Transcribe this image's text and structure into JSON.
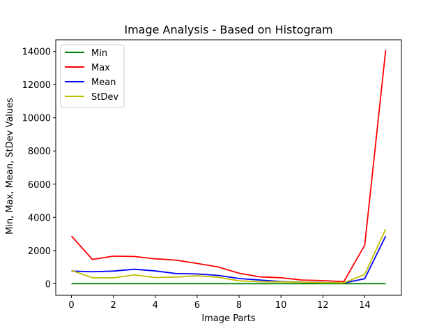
{
  "chart_data": {
    "type": "line",
    "title": "Image Analysis - Based on Histogram",
    "xlabel": "Image Parts",
    "ylabel": "Min, Max, Mean, StDev Values",
    "x": [
      0,
      1,
      2,
      3,
      4,
      5,
      6,
      7,
      8,
      9,
      10,
      11,
      12,
      13,
      14,
      15
    ],
    "xlim": [
      -0.75,
      15.75
    ],
    "ylim": [
      -700,
      14700
    ],
    "xticks": [
      0,
      2,
      4,
      6,
      8,
      10,
      12,
      14
    ],
    "yticks": [
      0,
      2000,
      4000,
      6000,
      8000,
      10000,
      12000,
      14000
    ],
    "grid": false,
    "legend_position": "top-left",
    "series": [
      {
        "name": "Min",
        "color": "#008000",
        "values": [
          0,
          0,
          0,
          0,
          0,
          0,
          0,
          0,
          0,
          0,
          0,
          0,
          0,
          0,
          0,
          0
        ]
      },
      {
        "name": "Max",
        "color": "#ff0000",
        "values": [
          2870,
          1460,
          1660,
          1640,
          1500,
          1420,
          1220,
          1010,
          630,
          410,
          360,
          220,
          190,
          120,
          2320,
          14080
        ]
      },
      {
        "name": "Mean",
        "color": "#0000ff",
        "values": [
          760,
          720,
          760,
          870,
          770,
          610,
          590,
          500,
          310,
          220,
          130,
          90,
          70,
          40,
          300,
          2870
        ]
      },
      {
        "name": "StDev",
        "color": "#bfbf00",
        "values": [
          800,
          360,
          350,
          530,
          370,
          400,
          480,
          390,
          170,
          120,
          110,
          90,
          60,
          50,
          560,
          3290
        ]
      }
    ]
  }
}
